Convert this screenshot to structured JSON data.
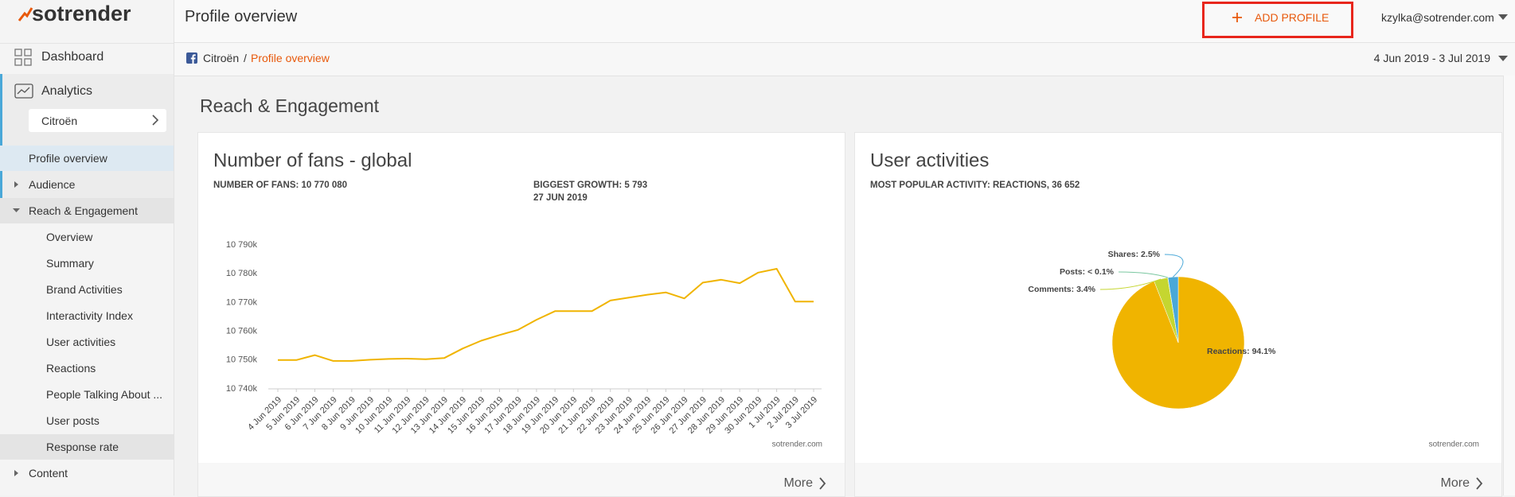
{
  "sidebar": {
    "logo": "sotrender",
    "nav": [
      "Dashboard",
      "Analytics"
    ],
    "profile": "Citroën",
    "menu": [
      "Profile overview",
      "Audience",
      "Reach & Engagement",
      "Overview",
      "Summary",
      "Brand Activities",
      "Interactivity Index",
      "User activities",
      "Reactions",
      "People Talking About ...",
      "User posts",
      "Response rate",
      "Content"
    ]
  },
  "header": {
    "title": "Profile overview",
    "button": "ADD PROFILE",
    "user": "kzylka@sotrender.com"
  },
  "breadcrumb": {
    "profile": "Citroën",
    "separator": "/",
    "current": "Profile overview",
    "date_range": "4 Jun 2019 - 3 Jul 2019"
  },
  "section_title": "Reach & Engagement",
  "chart_data": [
    {
      "type": "line",
      "title": "Number of fans - global",
      "annotations": [
        "NUMBER OF FANS: 10 770 080",
        "BIGGEST GROWTH: 5 793",
        "27 JUN 2019"
      ],
      "x": [
        "4 Jun 2019",
        "5 Jun 2019",
        "6 Jun 2019",
        "7 Jun 2019",
        "8 Jun 2019",
        "9 Jun 2019",
        "10 Jun 2019",
        "11 Jun 2019",
        "12 Jun 2019",
        "13 Jun 2019",
        "14 Jun 2019",
        "15 Jun 2019",
        "16 Jun 2019",
        "17 Jun 2019",
        "18 Jun 2019",
        "19 Jun 2019",
        "20 Jun 2019",
        "21 Jun 2019",
        "22 Jun 2019",
        "23 Jun 2019",
        "24 Jun 2019",
        "25 Jun 2019",
        "26 Jun 2019",
        "27 Jun 2019",
        "28 Jun 2019",
        "29 Jun 2019",
        "30 Jun 2019",
        "1 Jul 2019",
        "2 Jul 2019",
        "3 Jul 2019"
      ],
      "values": [
        10750000,
        10750000,
        10751700,
        10749700,
        10749700,
        10750100,
        10750400,
        10750500,
        10750300,
        10750700,
        10754000,
        10756700,
        10758700,
        10760500,
        10764000,
        10767000,
        10767000,
        10767000,
        10770700,
        10771700,
        10772700,
        10773500,
        10771400,
        10776900,
        10777900,
        10776700,
        10780400,
        10781700,
        10770300,
        10770300
      ],
      "color": "#f0b400",
      "ylim": [
        10740000,
        10790000
      ],
      "yticks": [
        {
          "value": 10740000,
          "label": "10 740k"
        },
        {
          "value": 10750000,
          "label": "10 750k"
        },
        {
          "value": 10760000,
          "label": "10 760k"
        },
        {
          "value": 10770000,
          "label": "10 770k"
        },
        {
          "value": 10780000,
          "label": "10 780k"
        },
        {
          "value": 10790000,
          "label": "10 790k"
        }
      ],
      "grid": false,
      "source": "sotrender.com",
      "more": "More"
    },
    {
      "type": "pie",
      "title": "User activities",
      "annotations": [
        "MOST POPULAR ACTIVITY: REACTIONS, 36 652"
      ],
      "categories": [
        "Reactions",
        "Comments",
        "Posts",
        "Shares"
      ],
      "values": [
        94.1,
        3.4,
        0.05,
        2.5
      ],
      "value_labels": [
        "Reactions: 94.1%",
        "Comments: 3.4%",
        "Posts: < 0.1%",
        "Shares: 2.5%"
      ],
      "colors": [
        "#f0b400",
        "#c5d630",
        "#7ac7a0",
        "#4aa8d8"
      ],
      "source": "sotrender.com",
      "more": "More"
    }
  ]
}
